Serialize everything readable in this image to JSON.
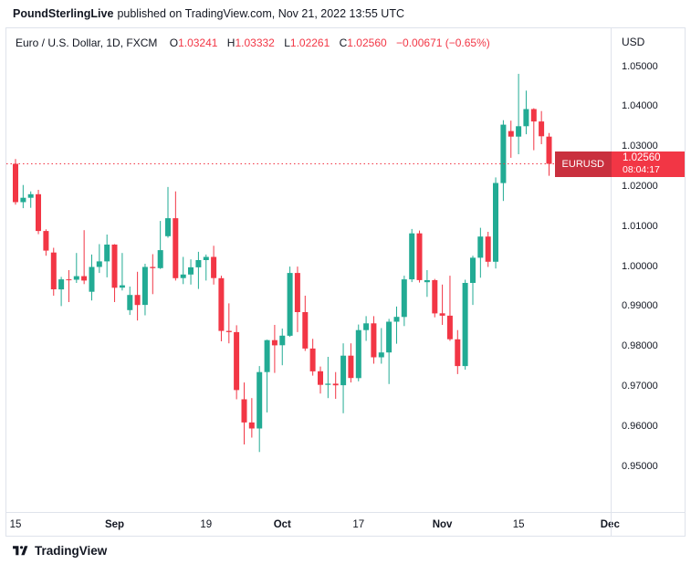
{
  "banner": {
    "publisher": "PoundSterlingLive",
    "rest": "published on TradingView.com, Nov 21, 2022 13:55 UTC"
  },
  "legend": {
    "symbol": "Euro / U.S. Dollar, 1D, FXCM",
    "ohlc": [
      {
        "label": "O",
        "value": "1.03241"
      },
      {
        "label": "H",
        "value": "1.03332"
      },
      {
        "label": "L",
        "value": "1.02261"
      },
      {
        "label": "C",
        "value": "1.02560"
      }
    ],
    "change": "−0.00671 (−0.65%)"
  },
  "price_scale": {
    "currency": "USD",
    "ticks": [
      "1.05000",
      "1.04000",
      "1.03000",
      "1.02000",
      "1.01000",
      "1.00000",
      "0.99000",
      "0.98000",
      "0.97000",
      "0.96000",
      "0.95000"
    ]
  },
  "price_label": {
    "symbol": "EURUSD",
    "price": "1.02560",
    "countdown": "08:04:17"
  },
  "time_axis": [
    {
      "label": "15",
      "index": 0,
      "major": false
    },
    {
      "label": "Sep",
      "index": 13,
      "major": true
    },
    {
      "label": "19",
      "index": 25,
      "major": false
    },
    {
      "label": "Oct",
      "index": 35,
      "major": true
    },
    {
      "label": "17",
      "index": 45,
      "major": false
    },
    {
      "label": "Nov",
      "index": 56,
      "major": true
    },
    {
      "label": "15",
      "index": 66,
      "major": false
    },
    {
      "label": "Dec",
      "index": 78,
      "major": true
    }
  ],
  "footer": {
    "brand": "TradingView",
    "logo_icon": "tradingview-mark"
  },
  "colors": {
    "up": "#22ab94",
    "down": "#f23645",
    "text": "#131722",
    "border": "#dfe3eb",
    "badge_bg": "#f23645",
    "badge_symbol_bg": "#c9303e"
  },
  "chart_data": {
    "type": "candlestick",
    "symbol": "EURUSD",
    "interval": "1D",
    "exchange": "FXCM",
    "last_price": 1.0256,
    "view_range": [
      0.9385,
      1.0595
    ],
    "ticks": [
      1.05,
      1.04,
      1.03,
      1.02,
      1.01,
      1.0,
      0.99,
      0.98,
      0.97,
      0.96,
      0.95
    ],
    "candles": [
      [
        1.0256,
        1.0268,
        1.0154,
        1.016
      ],
      [
        1.016,
        1.0203,
        1.0145,
        1.0171
      ],
      [
        1.0171,
        1.0187,
        1.0146,
        1.018
      ],
      [
        1.018,
        1.0191,
        1.008,
        1.0088
      ],
      [
        1.0088,
        1.0092,
        1.0026,
        1.0039
      ],
      [
        1.0034,
        1.0046,
        0.9926,
        0.9942
      ],
      [
        0.9942,
        0.9973,
        0.99,
        0.9967
      ],
      [
        0.9967,
        0.999,
        0.991,
        0.9966
      ],
      [
        0.9966,
        1.0033,
        0.9958,
        0.9975
      ],
      [
        0.9975,
        1.009,
        0.9955,
        0.9964
      ],
      [
        0.9936,
        1.0029,
        0.9914,
        0.9998
      ],
      [
        0.9998,
        1.0055,
        0.9983,
        1.0012
      ],
      [
        1.0012,
        1.0079,
        0.9972,
        1.0054
      ],
      [
        1.0054,
        1.0055,
        0.991,
        0.9946
      ],
      [
        0.9946,
        1.0033,
        0.9939,
        0.9952
      ],
      [
        0.989,
        0.9949,
        0.9878,
        0.9928
      ],
      [
        0.9928,
        0.9986,
        0.9864,
        0.9903
      ],
      [
        0.9903,
        1.0006,
        0.9877,
        0.9998
      ],
      [
        0.9998,
        1.003,
        0.993,
        0.9995
      ],
      [
        0.9995,
        1.0113,
        0.9993,
        1.004
      ],
      [
        1.0075,
        1.0198,
        1.0071,
        1.012
      ],
      [
        1.012,
        1.0187,
        0.9964,
        0.997
      ],
      [
        0.997,
        1.0023,
        0.9955,
        0.9979
      ],
      [
        0.9979,
        1.0017,
        0.9954,
        0.9997
      ],
      [
        0.9997,
        1.0036,
        0.9943,
        1.0015
      ],
      [
        1.0015,
        1.0029,
        0.9964,
        1.0023
      ],
      [
        1.0023,
        1.0051,
        0.9954,
        0.997
      ],
      [
        0.997,
        0.9976,
        0.9812,
        0.9838
      ],
      [
        0.9838,
        0.9907,
        0.9807,
        0.9835
      ],
      [
        0.9835,
        0.9852,
        0.9667,
        0.969
      ],
      [
        0.9667,
        0.9709,
        0.9554,
        0.9609
      ],
      [
        0.9609,
        0.967,
        0.9571,
        0.9594
      ],
      [
        0.9594,
        0.975,
        0.9535,
        0.9735
      ],
      [
        0.9735,
        0.9816,
        0.9634,
        0.9815
      ],
      [
        0.9815,
        0.9853,
        0.9733,
        0.9802
      ],
      [
        0.9802,
        0.9844,
        0.9752,
        0.9826
      ],
      [
        0.9826,
        0.9999,
        0.9823,
        0.9983
      ],
      [
        0.9983,
        0.9999,
        0.9835,
        0.9885
      ],
      [
        0.9885,
        0.9926,
        0.9788,
        0.9794
      ],
      [
        0.9794,
        0.9818,
        0.9726,
        0.9737
      ],
      [
        0.9737,
        0.9749,
        0.9681,
        0.9703
      ],
      [
        0.9703,
        0.9773,
        0.967,
        0.9706
      ],
      [
        0.9706,
        0.9735,
        0.9668,
        0.9702
      ],
      [
        0.9702,
        0.9807,
        0.9632,
        0.9776
      ],
      [
        0.9776,
        0.9807,
        0.9709,
        0.972
      ],
      [
        0.972,
        0.9854,
        0.9712,
        0.984
      ],
      [
        0.984,
        0.9875,
        0.9813,
        0.9857
      ],
      [
        0.9857,
        0.9875,
        0.9756,
        0.9772
      ],
      [
        0.9772,
        0.9845,
        0.9756,
        0.9784
      ],
      [
        0.9784,
        0.9868,
        0.9705,
        0.9861
      ],
      [
        0.9861,
        0.9899,
        0.9806,
        0.9873
      ],
      [
        0.9873,
        0.9976,
        0.985,
        0.9967
      ],
      [
        0.9967,
        1.0093,
        0.996,
        1.0082
      ],
      [
        1.0082,
        1.0089,
        0.9959,
        0.9965
      ],
      [
        0.996,
        0.999,
        0.9923,
        0.9965
      ],
      [
        0.9965,
        0.9968,
        0.9872,
        0.9882
      ],
      [
        0.9882,
        0.9954,
        0.9853,
        0.9876
      ],
      [
        0.9876,
        0.9976,
        0.9813,
        0.9817
      ],
      [
        0.9817,
        0.984,
        0.973,
        0.975
      ],
      [
        0.975,
        0.9966,
        0.9741,
        0.9958
      ],
      [
        0.9958,
        1.0026,
        0.9903,
        1.0021
      ],
      [
        1.0021,
        1.0096,
        0.9971,
        1.0074
      ],
      [
        1.0074,
        1.0086,
        0.9998,
        1.0011
      ],
      [
        1.0011,
        1.0222,
        0.9994,
        1.0208
      ],
      [
        1.0208,
        1.0365,
        1.0163,
        1.0354
      ],
      [
        1.0338,
        1.0364,
        1.0271,
        1.0324
      ],
      [
        1.0324,
        1.0481,
        1.028,
        1.035
      ],
      [
        1.035,
        1.0439,
        1.033,
        1.0393
      ],
      [
        1.0393,
        1.0395,
        1.029,
        1.0362
      ],
      [
        1.0362,
        1.0388,
        1.0305,
        1.0325
      ],
      [
        1.03241,
        1.03332,
        1.02261,
        1.0256
      ]
    ]
  }
}
